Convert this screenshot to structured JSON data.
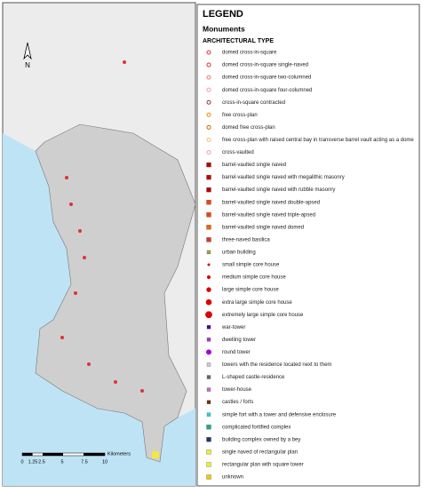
{
  "north": "N",
  "scale_bar": {
    "labels": [
      "0",
      "1.25",
      "2.5",
      "5",
      "7.5",
      "10"
    ],
    "unit": "Kilometers"
  },
  "legend": {
    "title": "LEGEND",
    "section": "Monuments",
    "subtitle": "ARCHITECTURAL TYPE",
    "items": [
      "domed cross-in-square",
      "domed cross-in-square single-naved",
      "domed cross-in-square two-columned",
      "domed cross-in-square four-columned",
      "cross-in-square contracted",
      "free cross-plan",
      "domed free cross-plan",
      "free cross-plan with raised central bay in transverse barrel vault acting as a dome",
      "cross-vaulted",
      "barrel-vaulted single naved",
      "barrel-vaulted single naved with megalithic masonry",
      "barrel-vaulted single naved with rubble masonry",
      "barrel-vaulted single naved double-apsed",
      "barrel-vaulted single naved triple-apsed",
      "barrel-vaulted single naved domed",
      "three-naved basilica",
      "urban building",
      "small simple core house",
      "medium simple core house",
      "large simple core house",
      "extra large simple core house",
      "extremely large simple core house",
      "war-tower",
      "dwelling tower",
      "round tower",
      "towers with the residence located next to them",
      "L-shaped castle-residence",
      "tower-house",
      "castles / forts",
      "simple fort with a tower and defensive enclosure",
      "complicated fortified complex",
      "building complex owned by a bey",
      "single naved of rectangular plan",
      "rectangular plan with square tower",
      "unknown"
    ]
  }
}
